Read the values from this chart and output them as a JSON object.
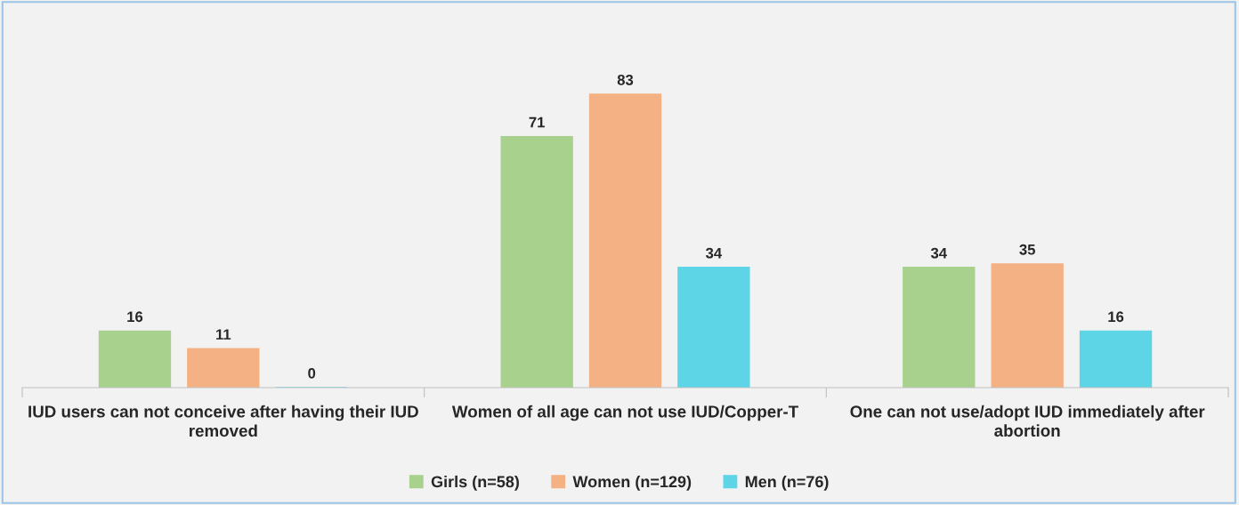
{
  "chart_data": {
    "type": "bar",
    "categories": [
      "IUD users can not conceive after having their IUD removed",
      "Women of all age can not use IUD/Copper-T",
      "One can not use/adopt IUD immediately after abortion"
    ],
    "series": [
      {
        "name": "Girls (n=58)",
        "color": "#a9d18e",
        "values": [
          16,
          71,
          34
        ]
      },
      {
        "name": "Women (n=129)",
        "color": "#f4b183",
        "values": [
          11,
          83,
          35
        ]
      },
      {
        "name": "Men (n=76)",
        "color": "#5dd5e6",
        "values": [
          0,
          34,
          16
        ]
      }
    ],
    "data_labels": true,
    "legend": "bottom",
    "grid": false
  }
}
